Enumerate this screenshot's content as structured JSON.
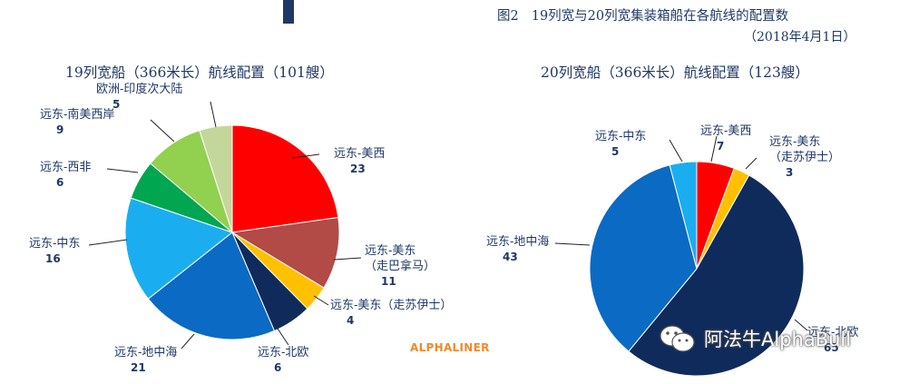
{
  "figure": {
    "number": "图2",
    "title": "19列宽与20列宽集装箱船在各航线的配置数",
    "date": "（2018年4月1日）",
    "source": "ALPHALINER",
    "watermark": "阿法牛AlphaBull"
  },
  "chart_data": [
    {
      "type": "pie",
      "title": "19列宽船（366米长）航线配置（101艘）",
      "slices": [
        {
          "label": "远东-美西",
          "value": 23,
          "color": "#ff0000"
        },
        {
          "label": "远东-美东（走巴拿马）",
          "label_lines": [
            "远东-美东",
            "（走巴拿马）"
          ],
          "value": 11,
          "color": "#b24a46"
        },
        {
          "label": "远东-美东（走苏伊士）",
          "label_lines": [
            "远东-美东（走苏伊士）"
          ],
          "value": 4,
          "color": "#ffc000"
        },
        {
          "label": "远东-北欧",
          "value": 6,
          "color": "#0f2b5b"
        },
        {
          "label": "远东-地中海",
          "value": 21,
          "color": "#0b6ac3"
        },
        {
          "label": "远东-中东",
          "value": 16,
          "color": "#1aaef0"
        },
        {
          "label": "远东-西非",
          "value": 6,
          "color": "#00a650"
        },
        {
          "label": "远东-南美西岸",
          "value": 9,
          "color": "#92d050"
        },
        {
          "label": "欧洲-印度次大陆",
          "value": 5,
          "color": "#c4d79b"
        }
      ]
    },
    {
      "type": "pie",
      "title": "20列宽船（366米长）航线配置（123艘）",
      "slices": [
        {
          "label": "远东-美西",
          "value": 7,
          "color": "#ff0000"
        },
        {
          "label": "远东-美东（走苏伊士）",
          "label_lines": [
            "远东-美东",
            "（走苏伊士）"
          ],
          "value": 3,
          "color": "#ffc000"
        },
        {
          "label": "远东-北欧",
          "value": 65,
          "color": "#0f2b5b"
        },
        {
          "label": "远东-地中海",
          "value": 43,
          "color": "#0b6ac3"
        },
        {
          "label": "远东-中东",
          "value": 5,
          "color": "#1aaef0"
        }
      ]
    }
  ]
}
